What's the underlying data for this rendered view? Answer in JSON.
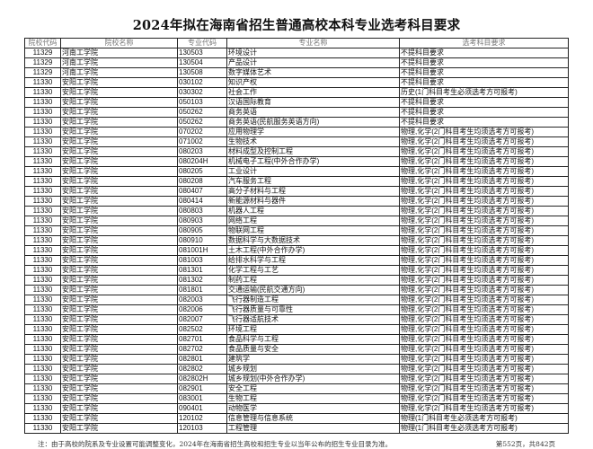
{
  "title": "2024年拟在海南省招生普通高校本科专业选考科目要求",
  "columns": [
    "院校代码",
    "院校名称",
    "专业代码",
    "专业名称",
    "选考科目要求"
  ],
  "rows": [
    [
      "11329",
      "河南工学院",
      "130503",
      "环境设计",
      "不提科目要求"
    ],
    [
      "11329",
      "河南工学院",
      "130504",
      "产品设计",
      "不提科目要求"
    ],
    [
      "11329",
      "河南工学院",
      "130508",
      "数字媒体艺术",
      "不提科目要求"
    ],
    [
      "11330",
      "安阳工学院",
      "030102",
      "知识产权",
      "不提科目要求"
    ],
    [
      "11330",
      "安阳工学院",
      "030302",
      "社会工作",
      "历史(1门科目考生必须选考方可报考)"
    ],
    [
      "11330",
      "安阳工学院",
      "050103",
      "汉语国际教育",
      "不提科目要求"
    ],
    [
      "11330",
      "安阳工学院",
      "050262",
      "商务英语",
      "不提科目要求"
    ],
    [
      "11330",
      "安阳工学院",
      "050262",
      "商务英语(民航服务英语方向)",
      "不提科目要求"
    ],
    [
      "11330",
      "安阳工学院",
      "070202",
      "应用物理学",
      "物理,化学(2门科目考生均须选考方可报考)"
    ],
    [
      "11330",
      "安阳工学院",
      "071002",
      "生物技术",
      "物理,化学(2门科目考生均须选考方可报考)"
    ],
    [
      "11330",
      "安阳工学院",
      "080203",
      "材料成型及控制工程",
      "物理,化学(2门科目考生均须选考方可报考)"
    ],
    [
      "11330",
      "安阳工学院",
      "080204H",
      "机械电子工程(中外合作办学)",
      "物理,化学(2门科目考生均须选考方可报考)"
    ],
    [
      "11330",
      "安阳工学院",
      "080205",
      "工业设计",
      "物理,化学(2门科目考生均须选考方可报考)"
    ],
    [
      "11330",
      "安阳工学院",
      "080208",
      "汽车服务工程",
      "物理,化学(2门科目考生均须选考方可报考)"
    ],
    [
      "11330",
      "安阳工学院",
      "080407",
      "高分子材料与工程",
      "物理,化学(2门科目考生均须选考方可报考)"
    ],
    [
      "11330",
      "安阳工学院",
      "080414",
      "新能源材料与器件",
      "物理,化学(2门科目考生均须选考方可报考)"
    ],
    [
      "11330",
      "安阳工学院",
      "080803",
      "机器人工程",
      "物理,化学(2门科目考生均须选考方可报考)"
    ],
    [
      "11330",
      "安阳工学院",
      "080903",
      "网络工程",
      "物理,化学(2门科目考生均须选考方可报考)"
    ],
    [
      "11330",
      "安阳工学院",
      "080905",
      "物联网工程",
      "物理,化学(2门科目考生均须选考方可报考)"
    ],
    [
      "11330",
      "安阳工学院",
      "080910",
      "数据科学与大数据技术",
      "物理,化学(2门科目考生均须选考方可报考)"
    ],
    [
      "11330",
      "安阳工学院",
      "081001H",
      "土木工程(中外合作办学)",
      "物理,化学(2门科目考生均须选考方可报考)"
    ],
    [
      "11330",
      "安阳工学院",
      "081003",
      "给排水科学与工程",
      "物理,化学(2门科目考生均须选考方可报考)"
    ],
    [
      "11330",
      "安阳工学院",
      "081301",
      "化学工程与工艺",
      "物理,化学(2门科目考生均须选考方可报考)"
    ],
    [
      "11330",
      "安阳工学院",
      "081302",
      "制药工程",
      "物理,化学(2门科目考生均须选考方可报考)"
    ],
    [
      "11330",
      "安阳工学院",
      "081801",
      "交通运输(民航交通方向)",
      "物理,化学(2门科目考生均须选考方可报考)"
    ],
    [
      "11330",
      "安阳工学院",
      "082003",
      "飞行器制造工程",
      "物理,化学(2门科目考生均须选考方可报考)"
    ],
    [
      "11330",
      "安阳工学院",
      "082006",
      "飞行器质量与可靠性",
      "物理,化学(2门科目考生均须选考方可报考)"
    ],
    [
      "11330",
      "安阳工学院",
      "082007",
      "飞行器适航技术",
      "物理,化学(2门科目考生均须选考方可报考)"
    ],
    [
      "11330",
      "安阳工学院",
      "082502",
      "环境工程",
      "物理,化学(2门科目考生均须选考方可报考)"
    ],
    [
      "11330",
      "安阳工学院",
      "082701",
      "食品科学与工程",
      "物理,化学(2门科目考生均须选考方可报考)"
    ],
    [
      "11330",
      "安阳工学院",
      "082702",
      "食品质量与安全",
      "物理,化学(2门科目考生均须选考方可报考)"
    ],
    [
      "11330",
      "安阳工学院",
      "082801",
      "建筑学",
      "物理,化学(2门科目考生均须选考方可报考)"
    ],
    [
      "11330",
      "安阳工学院",
      "082802",
      "城乡规划",
      "物理,化学(2门科目考生均须选考方可报考)"
    ],
    [
      "11330",
      "安阳工学院",
      "082802H",
      "城乡规划(中外合作办学)",
      "物理,化学(2门科目考生均须选考方可报考)"
    ],
    [
      "11330",
      "安阳工学院",
      "082901",
      "安全工程",
      "物理,化学(2门科目考生均须选考方可报考)"
    ],
    [
      "11330",
      "安阳工学院",
      "083001",
      "生物工程",
      "物理,化学(2门科目考生均须选考方可报考)"
    ],
    [
      "11330",
      "安阳工学院",
      "090401",
      "动物医学",
      "物理,化学(2门科目考生均须选考方可报考)"
    ],
    [
      "11330",
      "安阳工学院",
      "120102",
      "信息管理与信息系统",
      "物理(1门科目考生必须选考方可报考)"
    ],
    [
      "11330",
      "安阳工学院",
      "120103",
      "工程管理",
      "物理(1门科目考生必须选考方可报考)"
    ]
  ],
  "footnote": "注：由于高校的院系及专业设置可能调整变化，2024年在海南省招生高校和招生专业以当年公布的招生专业目录为准。",
  "page_info": "第552页，共842页"
}
